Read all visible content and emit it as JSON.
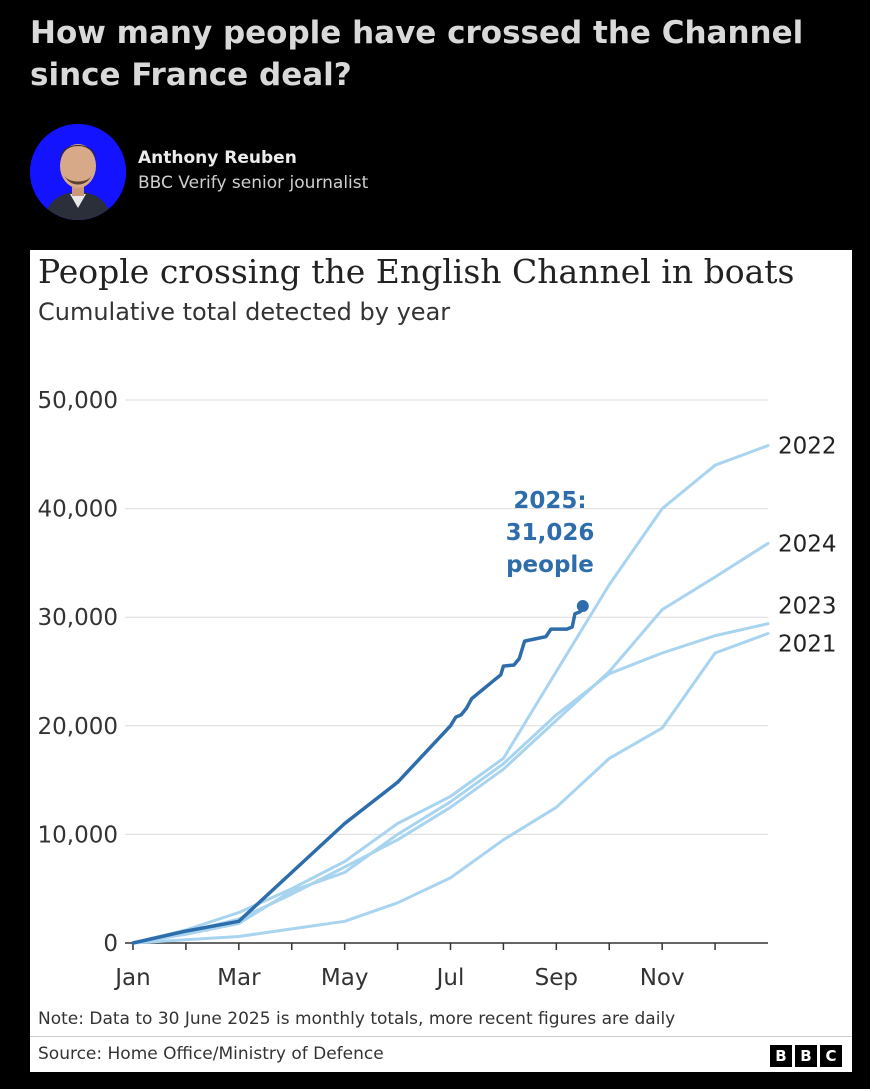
{
  "article": {
    "headline": "How many people have crossed the Channel since France deal?",
    "author": {
      "name": "Anthony Reuben",
      "role": "BBC Verify senior journalist"
    }
  },
  "chart_data": {
    "type": "line",
    "title": "People crossing the English Channel in boats",
    "subtitle": "Cumulative total detected by year",
    "x_ticks": [
      "Jan",
      "Mar",
      "May",
      "Jul",
      "Sep",
      "Nov"
    ],
    "y_ticks": [
      "0",
      "10,000",
      "20,000",
      "30,000",
      "40,000",
      "50,000"
    ],
    "ylim": [
      0,
      50000
    ],
    "xlim": [
      1,
      13
    ],
    "x_unit": "month (1 = start of Jan)",
    "series": [
      {
        "name": "2022",
        "color": "#a8d4f0",
        "points": [
          [
            1,
            0
          ],
          [
            2,
            1200
          ],
          [
            3,
            2800
          ],
          [
            4,
            5000
          ],
          [
            5,
            7500
          ],
          [
            6,
            11000
          ],
          [
            7,
            13500
          ],
          [
            8,
            17000
          ],
          [
            9,
            25000
          ],
          [
            10,
            33000
          ],
          [
            11,
            40000
          ],
          [
            12,
            44000
          ],
          [
            13,
            45800
          ]
        ]
      },
      {
        "name": "2024",
        "color": "#a8d4f0",
        "points": [
          [
            1,
            0
          ],
          [
            2,
            1000
          ],
          [
            3,
            2200
          ],
          [
            4,
            4500
          ],
          [
            5,
            7000
          ],
          [
            6,
            9500
          ],
          [
            7,
            12500
          ],
          [
            8,
            16000
          ],
          [
            9,
            20500
          ],
          [
            10,
            25000
          ],
          [
            11,
            30700
          ],
          [
            12,
            33700
          ],
          [
            13,
            36800
          ]
        ]
      },
      {
        "name": "2023",
        "color": "#a8d4f0",
        "points": [
          [
            1,
            0
          ],
          [
            2,
            800
          ],
          [
            3,
            1800
          ],
          [
            4,
            4800
          ],
          [
            5,
            6500
          ],
          [
            6,
            10000
          ],
          [
            7,
            13000
          ],
          [
            8,
            16500
          ],
          [
            9,
            21000
          ],
          [
            10,
            24800
          ],
          [
            11,
            26700
          ],
          [
            12,
            28300
          ],
          [
            13,
            29400
          ]
        ]
      },
      {
        "name": "2021",
        "color": "#a8d4f0",
        "points": [
          [
            1,
            0
          ],
          [
            2,
            300
          ],
          [
            3,
            600
          ],
          [
            4,
            1300
          ],
          [
            5,
            2000
          ],
          [
            6,
            3700
          ],
          [
            7,
            6000
          ],
          [
            8,
            9500
          ],
          [
            9,
            12500
          ],
          [
            10,
            17000
          ],
          [
            11,
            19800
          ],
          [
            12,
            26700
          ],
          [
            13,
            28500
          ]
        ]
      },
      {
        "name": "2025",
        "color": "#2e6dab",
        "points": [
          [
            1,
            0
          ],
          [
            2,
            1100
          ],
          [
            3,
            2000
          ],
          [
            4,
            6500
          ],
          [
            5,
            11000
          ],
          [
            6,
            14800
          ],
          [
            7,
            20000
          ],
          [
            7.1,
            20800
          ],
          [
            7.2,
            21000
          ],
          [
            7.3,
            21600
          ],
          [
            7.4,
            22500
          ],
          [
            7.6,
            23300
          ],
          [
            7.8,
            24100
          ],
          [
            7.95,
            24700
          ],
          [
            8.0,
            25500
          ],
          [
            8.2,
            25600
          ],
          [
            8.3,
            26200
          ],
          [
            8.4,
            27800
          ],
          [
            8.6,
            28000
          ],
          [
            8.8,
            28200
          ],
          [
            8.9,
            28900
          ],
          [
            9.2,
            28900
          ],
          [
            9.3,
            29100
          ],
          [
            9.35,
            30300
          ],
          [
            9.45,
            30500
          ],
          [
            9.5,
            31026
          ]
        ]
      }
    ],
    "annotation": {
      "lines": [
        "2025:",
        "31,026",
        "people"
      ],
      "color": "#2e6dab"
    },
    "grid": true,
    "legend": "direct labels at line ends"
  },
  "note": "Note: Data to 30 June 2025 is monthly totals, more recent figures are daily",
  "source": "Source: Home Office/Ministry of Defence",
  "logo": [
    "B",
    "B",
    "C"
  ]
}
